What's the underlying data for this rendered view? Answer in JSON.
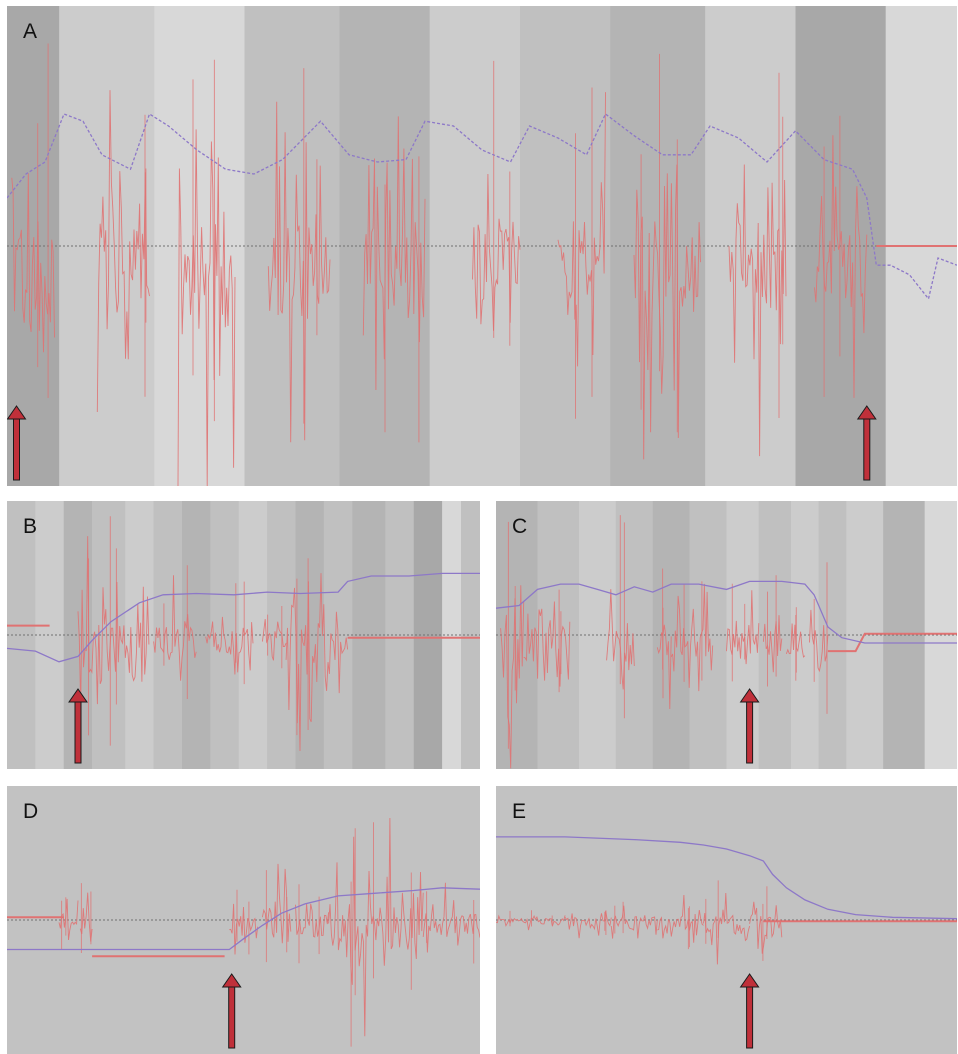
{
  "figure": {
    "background": "#ffffff",
    "panel_background": "#c2c2c2",
    "stripe_colors": [
      "#a8a8a8",
      "#b4b4b4",
      "#c0c0c0",
      "#cccccc",
      "#d8d8d8"
    ],
    "signal_color": "#e07272",
    "trend_color": "#8d78c8",
    "arrow_color": "#c0303a",
    "baseline_color": "#707070"
  },
  "panels": [
    {
      "label": "A",
      "arrow_icon_count": 2
    },
    {
      "label": "B",
      "arrow_icon_count": 1
    },
    {
      "label": "C",
      "arrow_icon_count": 1
    },
    {
      "label": "D",
      "arrow_icon_count": 1
    },
    {
      "label": "E",
      "arrow_icon_count": 1
    }
  ],
  "chart_data": [
    {
      "panel": "A",
      "type": "line",
      "x_range": [
        0,
        100
      ],
      "y_range": [
        -1,
        1
      ],
      "grid": false,
      "baseline": 0,
      "stripes": [
        {
          "x0": 0,
          "x1": 5.5,
          "shade": 0
        },
        {
          "x0": 5.5,
          "x1": 15.5,
          "shade": 3
        },
        {
          "x0": 15.5,
          "x1": 25,
          "shade": 4
        },
        {
          "x0": 25,
          "x1": 35,
          "shade": 2
        },
        {
          "x0": 35,
          "x1": 44.5,
          "shade": 1
        },
        {
          "x0": 44.5,
          "x1": 54,
          "shade": 3
        },
        {
          "x0": 54,
          "x1": 63.5,
          "shade": 2
        },
        {
          "x0": 63.5,
          "x1": 73.5,
          "shade": 1
        },
        {
          "x0": 73.5,
          "x1": 83,
          "shade": 3
        },
        {
          "x0": 83,
          "x1": 92.5,
          "shade": 0
        },
        {
          "x0": 92.5,
          "x1": 100,
          "shade": 4
        }
      ],
      "bursts": [
        {
          "x0": 0.5,
          "x1": 5,
          "amp": 0.9
        },
        {
          "x0": 9.5,
          "x1": 15,
          "amp": 0.75
        },
        {
          "x0": 18,
          "x1": 24,
          "amp": 0.95
        },
        {
          "x0": 27.5,
          "x1": 34,
          "amp": 0.8
        },
        {
          "x0": 37.5,
          "x1": 44,
          "amp": 0.85
        },
        {
          "x0": 49,
          "x1": 54,
          "amp": 0.9
        },
        {
          "x0": 58,
          "x1": 63,
          "amp": 0.8
        },
        {
          "x0": 66,
          "x1": 73,
          "amp": 0.85
        },
        {
          "x0": 76,
          "x1": 82,
          "amp": 0.8
        },
        {
          "x0": 85,
          "x1": 90.5,
          "amp": 0.65
        }
      ],
      "trend": [
        [
          0,
          0.2
        ],
        [
          2,
          0.3
        ],
        [
          4,
          0.35
        ],
        [
          6,
          0.55
        ],
        [
          8,
          0.52
        ],
        [
          10,
          0.38
        ],
        [
          13,
          0.32
        ],
        [
          15,
          0.55
        ],
        [
          17,
          0.5
        ],
        [
          20,
          0.4
        ],
        [
          23,
          0.32
        ],
        [
          26,
          0.3
        ],
        [
          29,
          0.36
        ],
        [
          33,
          0.52
        ],
        [
          36,
          0.38
        ],
        [
          39,
          0.35
        ],
        [
          42,
          0.36
        ],
        [
          44,
          0.52
        ],
        [
          47,
          0.5
        ],
        [
          50,
          0.4
        ],
        [
          53,
          0.35
        ],
        [
          55,
          0.5
        ],
        [
          58,
          0.45
        ],
        [
          61,
          0.38
        ],
        [
          63,
          0.55
        ],
        [
          66,
          0.46
        ],
        [
          69,
          0.38
        ],
        [
          72,
          0.38
        ],
        [
          74,
          0.5
        ],
        [
          77,
          0.45
        ],
        [
          80,
          0.35
        ],
        [
          83,
          0.48
        ],
        [
          86,
          0.36
        ],
        [
          89,
          0.32
        ],
        [
          90.5,
          0.2
        ],
        [
          91.5,
          -0.08
        ],
        [
          93,
          -0.08
        ],
        [
          95,
          -0.12
        ],
        [
          97,
          -0.22
        ],
        [
          98,
          -0.05
        ],
        [
          100,
          -0.08
        ]
      ],
      "quiet_tail": [
        [
          91.5,
          0.0
        ],
        [
          100,
          0.0
        ]
      ],
      "arrows_at_x": [
        1,
        90.5
      ]
    },
    {
      "panel": "B",
      "type": "line",
      "x_range": [
        0,
        100
      ],
      "y_range": [
        -1,
        1
      ],
      "grid": false,
      "baseline": 0,
      "stripes": [
        {
          "x0": 0,
          "x1": 6,
          "shade": 2
        },
        {
          "x0": 6,
          "x1": 12,
          "shade": 3
        },
        {
          "x0": 12,
          "x1": 18,
          "shade": 1
        },
        {
          "x0": 18,
          "x1": 25,
          "shade": 2
        },
        {
          "x0": 25,
          "x1": 31,
          "shade": 3
        },
        {
          "x0": 31,
          "x1": 37,
          "shade": 2
        },
        {
          "x0": 37,
          "x1": 43,
          "shade": 1
        },
        {
          "x0": 43,
          "x1": 49,
          "shade": 2
        },
        {
          "x0": 49,
          "x1": 55,
          "shade": 3
        },
        {
          "x0": 55,
          "x1": 61,
          "shade": 2
        },
        {
          "x0": 61,
          "x1": 67,
          "shade": 1
        },
        {
          "x0": 67,
          "x1": 73,
          "shade": 2
        },
        {
          "x0": 73,
          "x1": 80,
          "shade": 1
        },
        {
          "x0": 80,
          "x1": 86,
          "shade": 2
        },
        {
          "x0": 86,
          "x1": 92,
          "shade": 0
        },
        {
          "x0": 92,
          "x1": 96,
          "shade": 4
        },
        {
          "x0": 96,
          "x1": 100,
          "shade": 2
        }
      ],
      "bursts": [
        {
          "x0": 15,
          "x1": 30,
          "amp": 0.95
        },
        {
          "x0": 31,
          "x1": 40,
          "amp": 0.55
        },
        {
          "x0": 42,
          "x1": 52,
          "amp": 0.45
        },
        {
          "x0": 54,
          "x1": 59,
          "amp": 0.35
        },
        {
          "x0": 59,
          "x1": 72,
          "amp": 0.97
        }
      ],
      "trend": [
        [
          0,
          -0.1
        ],
        [
          6,
          -0.12
        ],
        [
          11,
          -0.2
        ],
        [
          15,
          -0.16
        ],
        [
          18,
          -0.04
        ],
        [
          22,
          0.1
        ],
        [
          28,
          0.24
        ],
        [
          33,
          0.3
        ],
        [
          40,
          0.31
        ],
        [
          48,
          0.3
        ],
        [
          55,
          0.32
        ],
        [
          62,
          0.31
        ],
        [
          70,
          0.32
        ],
        [
          72,
          0.4
        ],
        [
          77,
          0.44
        ],
        [
          85,
          0.44
        ],
        [
          92,
          0.46
        ],
        [
          100,
          0.46
        ]
      ],
      "pre_signal": [
        [
          0,
          0.07
        ],
        [
          9,
          0.07
        ]
      ],
      "post_signal": [
        [
          72,
          -0.02
        ],
        [
          100,
          -0.02
        ]
      ],
      "arrows_at_x": [
        15
      ]
    },
    {
      "panel": "C",
      "type": "line",
      "x_range": [
        0,
        100
      ],
      "y_range": [
        -1,
        1
      ],
      "grid": false,
      "baseline": 0,
      "stripes": [
        {
          "x0": 0,
          "x1": 9,
          "shade": 1
        },
        {
          "x0": 9,
          "x1": 18,
          "shade": 2
        },
        {
          "x0": 18,
          "x1": 26,
          "shade": 3
        },
        {
          "x0": 26,
          "x1": 34,
          "shade": 2
        },
        {
          "x0": 34,
          "x1": 42,
          "shade": 1
        },
        {
          "x0": 42,
          "x1": 50,
          "shade": 2
        },
        {
          "x0": 50,
          "x1": 57,
          "shade": 3
        },
        {
          "x0": 57,
          "x1": 64,
          "shade": 2
        },
        {
          "x0": 64,
          "x1": 70,
          "shade": 3
        },
        {
          "x0": 70,
          "x1": 76,
          "shade": 2
        },
        {
          "x0": 76,
          "x1": 84,
          "shade": 3
        },
        {
          "x0": 84,
          "x1": 93,
          "shade": 1
        },
        {
          "x0": 93,
          "x1": 100,
          "shade": 4
        }
      ],
      "bursts": [
        {
          "x0": 1,
          "x1": 6,
          "amp": 0.9
        },
        {
          "x0": 6,
          "x1": 16,
          "amp": 0.55
        },
        {
          "x0": 24,
          "x1": 30,
          "amp": 0.9
        },
        {
          "x0": 35,
          "x1": 38,
          "amp": 0.5
        },
        {
          "x0": 38,
          "x1": 47,
          "amp": 0.45
        },
        {
          "x0": 50,
          "x1": 57,
          "amp": 0.4
        },
        {
          "x0": 58,
          "x1": 62,
          "amp": 0.45
        },
        {
          "x0": 63,
          "x1": 67,
          "amp": 0.4
        },
        {
          "x0": 68,
          "x1": 72,
          "amp": 0.7
        }
      ],
      "trend": [
        [
          0,
          0.2
        ],
        [
          5,
          0.22
        ],
        [
          9,
          0.34
        ],
        [
          14,
          0.38
        ],
        [
          18,
          0.38
        ],
        [
          22,
          0.34
        ],
        [
          26,
          0.3
        ],
        [
          30,
          0.36
        ],
        [
          34,
          0.32
        ],
        [
          38,
          0.38
        ],
        [
          44,
          0.38
        ],
        [
          50,
          0.34
        ],
        [
          55,
          0.4
        ],
        [
          62,
          0.4
        ],
        [
          67,
          0.38
        ],
        [
          69,
          0.3
        ],
        [
          72,
          0.06
        ],
        [
          75,
          -0.02
        ],
        [
          80,
          -0.06
        ],
        [
          100,
          -0.06
        ]
      ],
      "post_signal": [
        [
          72,
          -0.12
        ],
        [
          78,
          -0.12
        ],
        [
          80,
          0.01
        ],
        [
          100,
          0.01
        ]
      ],
      "arrows_at_x": [
        55
      ]
    },
    {
      "panel": "D",
      "type": "line",
      "x_range": [
        0,
        100
      ],
      "y_range": [
        -1,
        1
      ],
      "grid": false,
      "baseline": 0,
      "bursts": [
        {
          "x0": 11,
          "x1": 15,
          "amp": 0.25
        },
        {
          "x0": 15.5,
          "x1": 18,
          "amp": 0.3
        },
        {
          "x0": 47,
          "x1": 53,
          "amp": 0.3
        },
        {
          "x0": 54,
          "x1": 60,
          "amp": 0.5
        },
        {
          "x0": 61,
          "x1": 68,
          "amp": 0.35
        },
        {
          "x0": 68,
          "x1": 88,
          "amp": 0.95
        },
        {
          "x0": 88,
          "x1": 100,
          "amp": 0.35
        }
      ],
      "trend": [
        [
          0,
          -0.22
        ],
        [
          10,
          -0.22
        ],
        [
          15,
          -0.22
        ],
        [
          20,
          -0.22
        ],
        [
          30,
          -0.22
        ],
        [
          40,
          -0.22
        ],
        [
          47,
          -0.22
        ],
        [
          50,
          -0.14
        ],
        [
          54,
          -0.04
        ],
        [
          58,
          0.05
        ],
        [
          63,
          0.12
        ],
        [
          70,
          0.18
        ],
        [
          78,
          0.2
        ],
        [
          86,
          0.22
        ],
        [
          92,
          0.24
        ],
        [
          100,
          0.23
        ]
      ],
      "pre_signal": [
        [
          0,
          0.02
        ],
        [
          12,
          0.02
        ]
      ],
      "mid_signal": [
        [
          18,
          -0.27
        ],
        [
          46,
          -0.27
        ]
      ],
      "arrows_at_x": [
        47.5
      ]
    },
    {
      "panel": "E",
      "type": "line",
      "x_range": [
        0,
        100
      ],
      "y_range": [
        -1,
        1
      ],
      "grid": false,
      "baseline": 0,
      "bursts": [
        {
          "x0": 0,
          "x1": 15,
          "amp": 0.08
        },
        {
          "x0": 15,
          "x1": 25,
          "amp": 0.14
        },
        {
          "x0": 25,
          "x1": 35,
          "amp": 0.2
        },
        {
          "x0": 35,
          "x1": 45,
          "amp": 0.24
        },
        {
          "x0": 45,
          "x1": 55,
          "amp": 0.3
        },
        {
          "x0": 55,
          "x1": 62,
          "amp": 0.35
        }
      ],
      "trend": [
        [
          0,
          0.62
        ],
        [
          15,
          0.62
        ],
        [
          30,
          0.6
        ],
        [
          40,
          0.58
        ],
        [
          45,
          0.56
        ],
        [
          50,
          0.53
        ],
        [
          55,
          0.48
        ],
        [
          58,
          0.44
        ],
        [
          60,
          0.34
        ],
        [
          63,
          0.24
        ],
        [
          67,
          0.15
        ],
        [
          72,
          0.08
        ],
        [
          78,
          0.04
        ],
        [
          86,
          0.02
        ],
        [
          100,
          0.01
        ]
      ],
      "post_signal": [
        [
          58,
          -0.01
        ],
        [
          100,
          -0.01
        ]
      ],
      "arrows_at_x": [
        55
      ]
    }
  ]
}
